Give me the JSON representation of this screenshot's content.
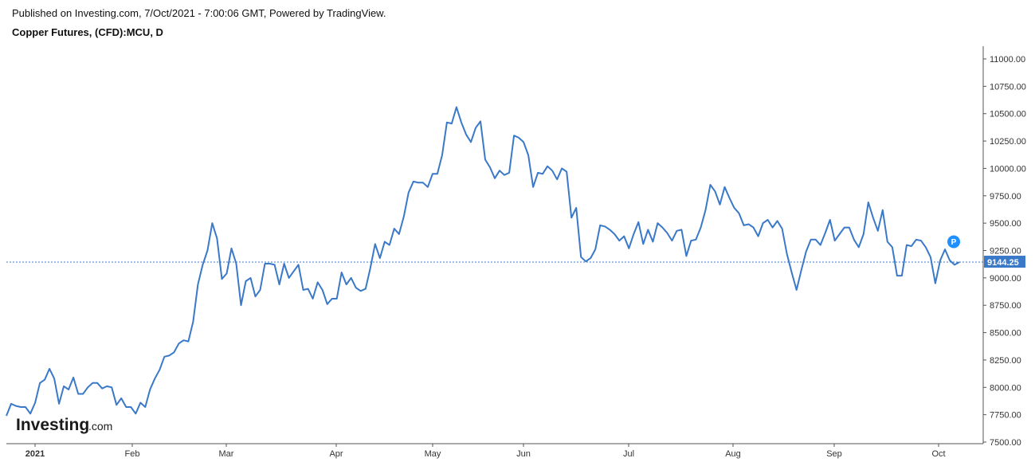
{
  "header": {
    "published": "Published on Investing.com, 7/Oct/2021 - 7:00:06 GMT, Powered by TradingView.",
    "symbol": "Copper Futures, (CFD):MCU, D"
  },
  "logo": {
    "brand": "Investing",
    "suffix": ".com"
  },
  "colors": {
    "line": "#3a78c8",
    "price_tag": "#3a78c8",
    "marker": "#1e90ff"
  },
  "marker": {
    "label": "P"
  },
  "chart_data": {
    "type": "line",
    "title": "Copper Futures, (CFD):MCU, D",
    "ylim": [
      7500,
      11000
    ],
    "y_ticks": [
      "11000.00",
      "10750.00",
      "10500.00",
      "10250.00",
      "10000.00",
      "9750.00",
      "9500.00",
      "9250.00",
      "9000.00",
      "8750.00",
      "8500.00",
      "8250.00",
      "8000.00",
      "7750.00",
      "7500.00"
    ],
    "x_labels": [
      "2021",
      "Feb",
      "Mar",
      "Apr",
      "May",
      "Jun",
      "Jul",
      "Aug",
      "Sep",
      "Oct"
    ],
    "last_price": "9144.25",
    "last_value": 9144.25,
    "series": [
      {
        "values": [
          7740,
          7850,
          7830,
          7820,
          7820,
          7760,
          7860,
          8040,
          8070,
          8170,
          8080,
          7850,
          8010,
          7980,
          8090,
          7940,
          7940,
          8000,
          8040,
          8040,
          7990,
          8010,
          8000,
          7840,
          7900,
          7820,
          7820,
          7760,
          7860,
          7820,
          7980,
          8080,
          8160,
          8280,
          8290,
          8320,
          8400,
          8430,
          8420,
          8600,
          8940,
          9120,
          9250,
          9500,
          9360,
          8990,
          9040,
          9270,
          9130,
          8750,
          8970,
          9000,
          8830,
          8890,
          9130,
          9130,
          9120,
          8940,
          9130,
          9000,
          9060,
          9120,
          8890,
          8900,
          8810,
          8960,
          8890,
          8760,
          8810,
          8810,
          9050,
          8940,
          9000,
          8910,
          8880,
          8900,
          9090,
          9310,
          9180,
          9330,
          9300,
          9450,
          9400,
          9560,
          9780,
          9880,
          9870,
          9870,
          9830,
          9950,
          9950,
          10120,
          10420,
          10410,
          10560,
          10420,
          10310,
          10240,
          10370,
          10430,
          10080,
          10010,
          9910,
          9980,
          9940,
          9960,
          10300,
          10280,
          10240,
          10120,
          9830,
          9960,
          9950,
          10020,
          9980,
          9900,
          10000,
          9970,
          9550,
          9640,
          9190,
          9150,
          9180,
          9260,
          9480,
          9470,
          9440,
          9400,
          9340,
          9380,
          9270,
          9400,
          9510,
          9310,
          9440,
          9330,
          9500,
          9460,
          9410,
          9340,
          9430,
          9440,
          9200,
          9340,
          9350,
          9460,
          9620,
          9850,
          9790,
          9670,
          9830,
          9730,
          9640,
          9590,
          9480,
          9490,
          9460,
          9380,
          9500,
          9530,
          9460,
          9520,
          9450,
          9220,
          9050,
          8890,
          9070,
          9240,
          9350,
          9350,
          9300,
          9410,
          9530,
          9340,
          9400,
          9460,
          9460,
          9350,
          9280,
          9400,
          9690,
          9550,
          9430,
          9620,
          9330,
          9280,
          9020,
          9020,
          9300,
          9290,
          9350,
          9340,
          9280,
          9190,
          8950,
          9160,
          9260,
          9160,
          9120,
          9144
        ]
      }
    ]
  }
}
